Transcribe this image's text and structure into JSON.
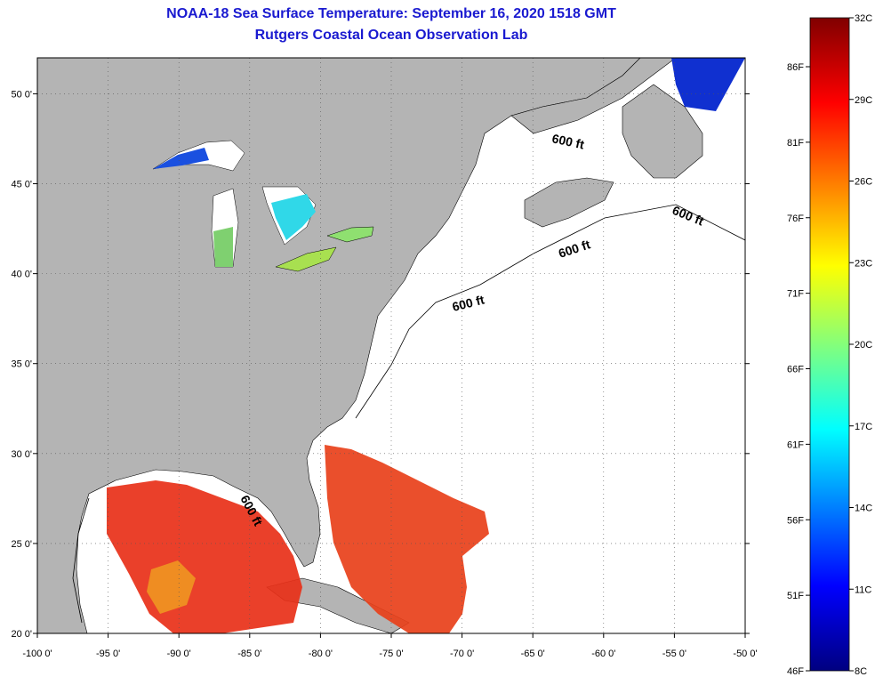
{
  "title": {
    "line1": "NOAA-18 Sea Surface Temperature:  September 16, 2020 1518 GMT",
    "line2": "Rutgers Coastal Ocean Observation Lab"
  },
  "map": {
    "lon_range": [
      -100,
      -50
    ],
    "lat_range": [
      20,
      52
    ],
    "lon_ticks": [
      "-100 0'",
      "-95 0'",
      "-90 0'",
      "-85 0'",
      "-80 0'",
      "-75 0'",
      "-70 0'",
      "-65 0'",
      "-60 0'",
      "-55 0'",
      "-50 0'"
    ],
    "lat_ticks": [
      "20 0'",
      "25 0'",
      "30 0'",
      "35 0'",
      "40 0'",
      "45 0'",
      "50 0'"
    ],
    "contour_label": "600 ft",
    "land_color": "#b4b4b4",
    "ocean_color": "#ffffff"
  },
  "colorbar": {
    "celsius": [
      "32C",
      "29C",
      "26C",
      "23C",
      "20C",
      "17C",
      "14C",
      "11C",
      "8C"
    ],
    "fahrenheit": [
      "86F",
      "81F",
      "76F",
      "71F",
      "66F",
      "61F",
      "56F",
      "51F",
      "46F"
    ],
    "min_c": 8,
    "max_c": 32
  }
}
